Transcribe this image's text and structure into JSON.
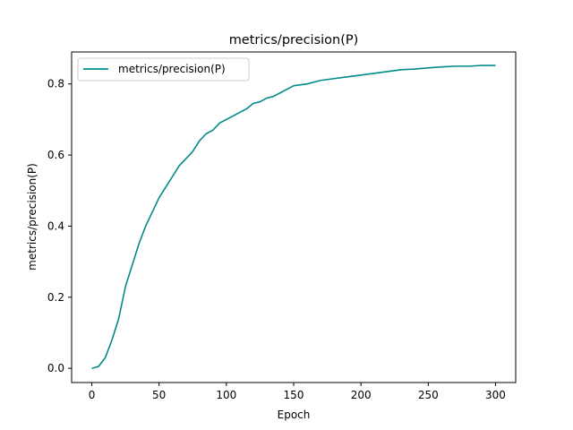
{
  "chart_data": {
    "type": "line",
    "title": "metrics/precision(P)",
    "xlabel": "Epoch",
    "ylabel": "metrics/precision(P)",
    "xlim": [
      -15,
      315
    ],
    "ylim": [
      -0.04,
      0.89
    ],
    "xticks": [
      0,
      50,
      100,
      150,
      200,
      250,
      300
    ],
    "yticks": [
      0.0,
      0.2,
      0.4,
      0.6,
      0.8
    ],
    "ytick_labels": [
      "0.0",
      "0.2",
      "0.4",
      "0.6",
      "0.8"
    ],
    "grid": false,
    "legend_position": "upper-left",
    "series": [
      {
        "name": "metrics/precision(P)",
        "color": "#008B8B",
        "x": [
          0,
          5,
          10,
          15,
          20,
          25,
          30,
          35,
          40,
          45,
          50,
          55,
          60,
          65,
          70,
          75,
          80,
          85,
          90,
          95,
          100,
          105,
          110,
          115,
          120,
          125,
          130,
          135,
          140,
          145,
          150,
          160,
          170,
          180,
          190,
          200,
          210,
          220,
          230,
          240,
          250,
          260,
          270,
          280,
          290,
          300
        ],
        "values": [
          0.0,
          0.005,
          0.03,
          0.08,
          0.14,
          0.23,
          0.29,
          0.35,
          0.4,
          0.44,
          0.48,
          0.51,
          0.54,
          0.57,
          0.59,
          0.61,
          0.64,
          0.66,
          0.67,
          0.69,
          0.7,
          0.71,
          0.72,
          0.73,
          0.745,
          0.75,
          0.76,
          0.765,
          0.775,
          0.785,
          0.795,
          0.8,
          0.81,
          0.815,
          0.82,
          0.825,
          0.83,
          0.835,
          0.84,
          0.842,
          0.845,
          0.848,
          0.85,
          0.85,
          0.852,
          0.852
        ]
      }
    ]
  }
}
